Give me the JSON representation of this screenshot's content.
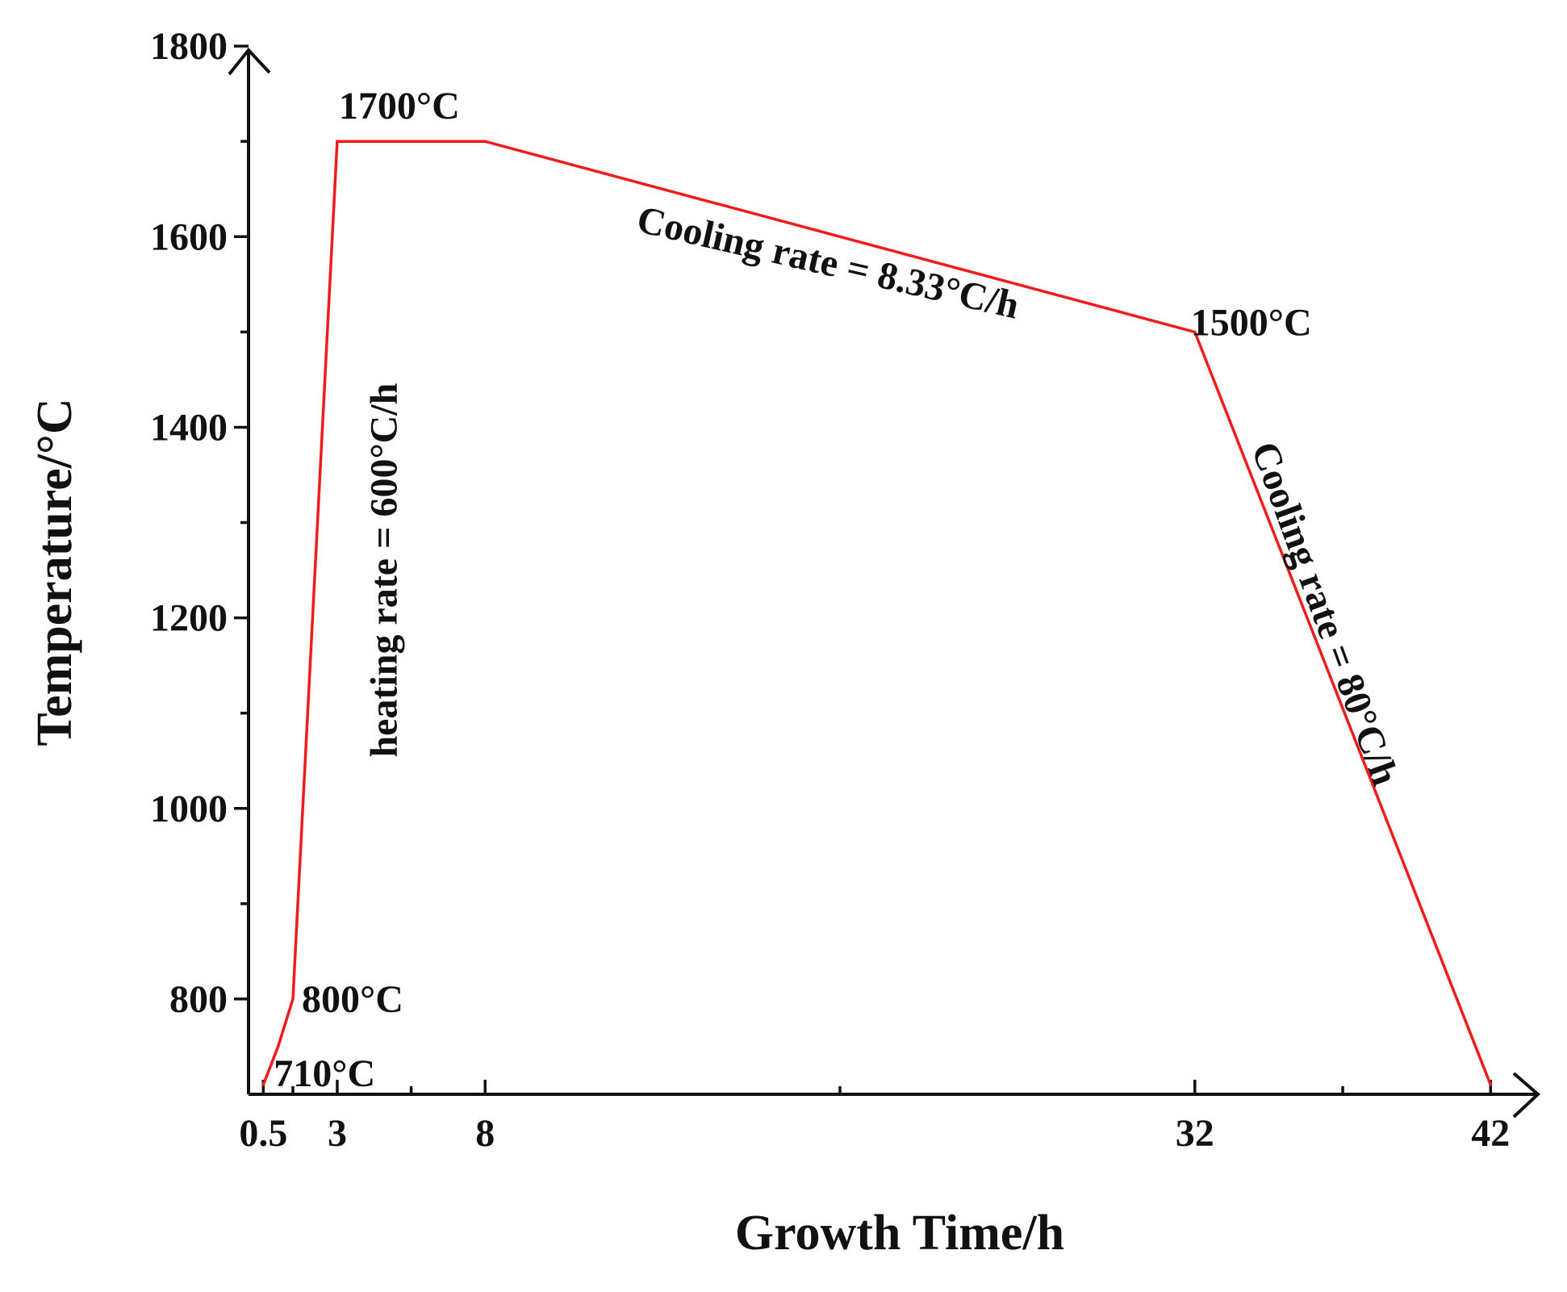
{
  "chart_data": {
    "type": "line",
    "title": "",
    "xlabel": "Growth Time/h",
    "ylabel": "Temperature/°C",
    "xlim": [
      0,
      43
    ],
    "ylim": [
      700,
      1800
    ],
    "x_tick_labels": [
      "0.5",
      "3",
      "8",
      "32",
      "42"
    ],
    "x_tick_values": [
      0.5,
      3,
      8,
      32,
      42
    ],
    "x_minor_ticks": [
      1.5,
      5.5,
      20,
      37
    ],
    "y_tick_values": [
      800,
      1000,
      1200,
      1400,
      1600,
      1800
    ],
    "y_minor_ticks": [
      900,
      1100,
      1300,
      1500,
      1700
    ],
    "series": [
      {
        "name": "Temperature",
        "color": "#ee1c1c",
        "x": [
          0.5,
          1,
          1.5,
          3,
          8,
          32,
          42
        ],
        "y": [
          710,
          750,
          800,
          1700,
          1700,
          1500,
          710
        ]
      }
    ],
    "annotations": [
      {
        "id": "t1700",
        "text": "1700°C",
        "x": 3,
        "y": 1700,
        "rotate": 0
      },
      {
        "id": "t1500",
        "text": "1500°C",
        "x": 32,
        "y": 1500,
        "rotate": 0
      },
      {
        "id": "t800",
        "text": "800°C",
        "x": 1.5,
        "y": 800,
        "rotate": 0
      },
      {
        "id": "t710",
        "text": "710°C",
        "x": 0.5,
        "y": 710,
        "rotate": 0
      },
      {
        "id": "heating",
        "text": "heating rate = 600°C/h",
        "x": 5,
        "y": 1250,
        "rotate": -90
      },
      {
        "id": "cool1",
        "text": "Cooling rate = 8.33°C/h",
        "x": 19.5,
        "y": 1560,
        "rotate": 13
      },
      {
        "id": "cool2",
        "text": "Cooling rate = 80°C/h",
        "x": 36,
        "y": 1200,
        "rotate": 70
      }
    ]
  }
}
